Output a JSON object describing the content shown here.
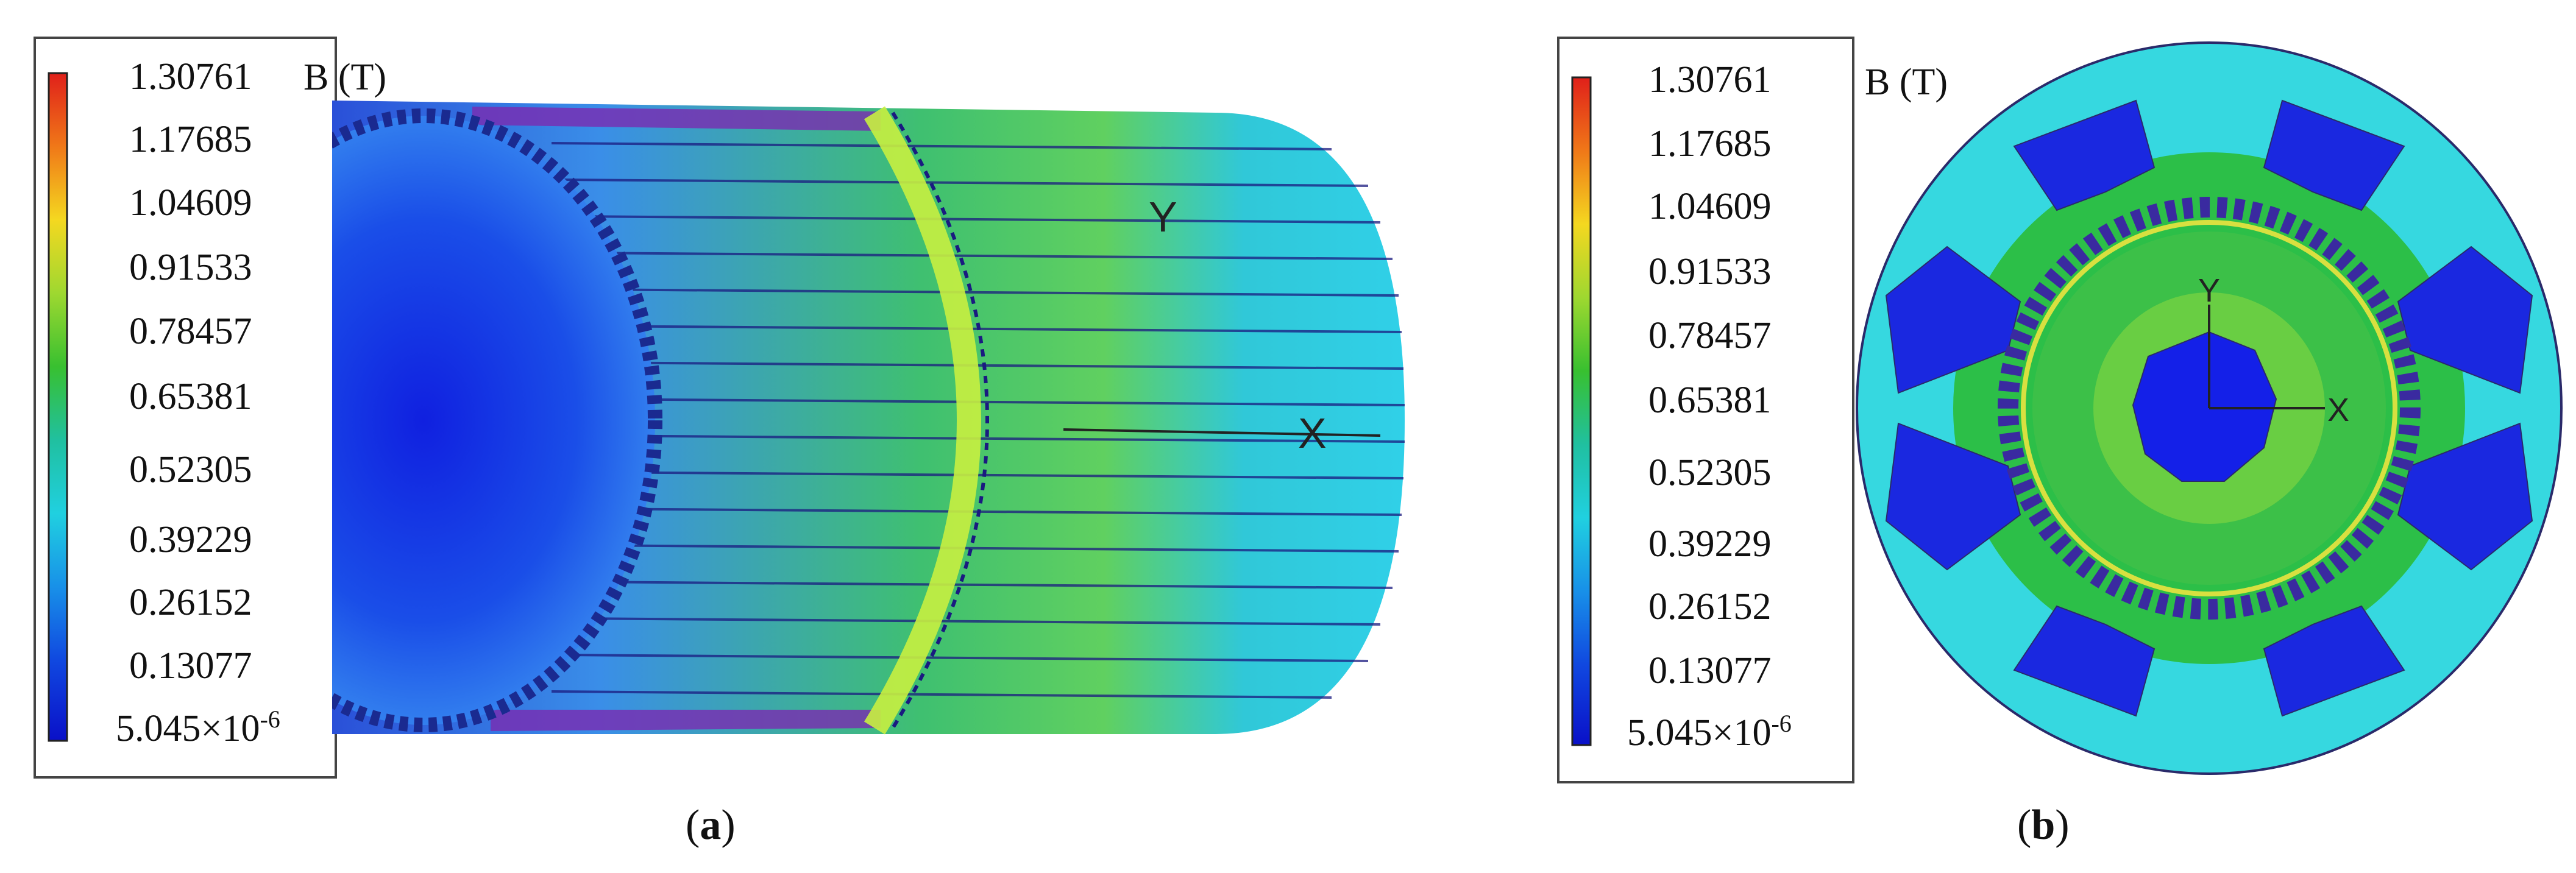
{
  "legend": {
    "quantity": "B (T)",
    "ticks": [
      "1.30761",
      "1.17685",
      "1.04609",
      "0.91533",
      "0.78457",
      "0.65381",
      "0.52305",
      "0.39229",
      "0.26152",
      "0.13077"
    ],
    "min_base": "5.045×10",
    "min_exp": "-6",
    "colormap": [
      "#e0201a",
      "#f07818",
      "#f4d820",
      "#9ed830",
      "#38c030",
      "#20c0a0",
      "#20d0e0",
      "#1890e8",
      "#1048e0",
      "#0a10c8"
    ]
  },
  "panel_a": {
    "caption_open": "(",
    "caption_letter": "a",
    "caption_close": ")",
    "axis_y": "Y",
    "axis_x": "X"
  },
  "panel_b": {
    "caption_open": "(",
    "caption_letter": "b",
    "caption_close": ")",
    "axis_y": "Y",
    "axis_x": "X"
  }
}
